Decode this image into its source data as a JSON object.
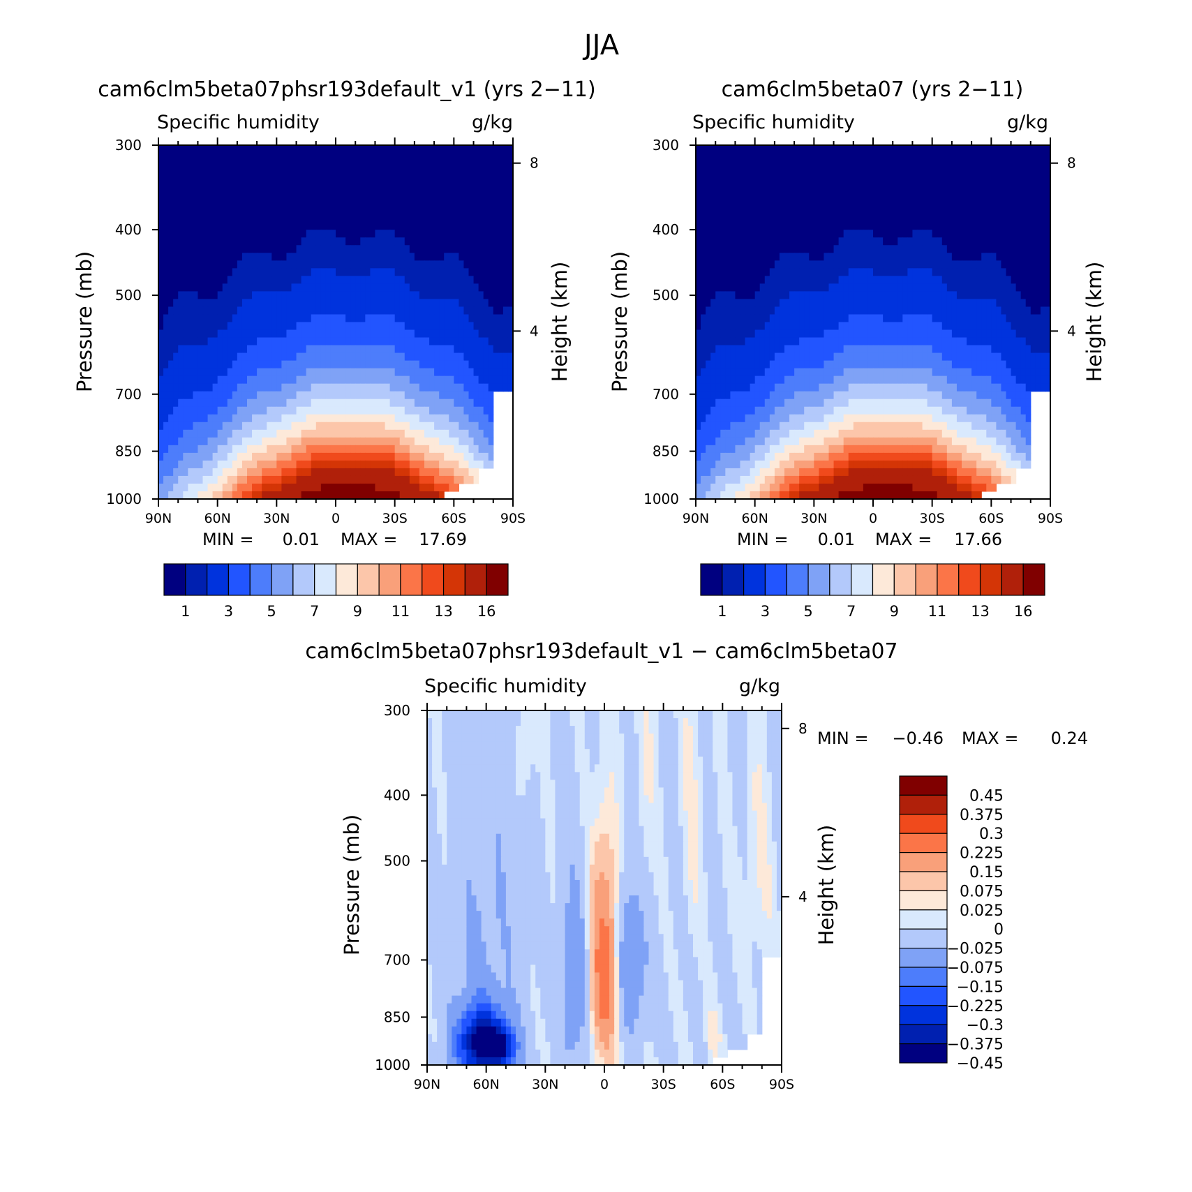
{
  "figure": {
    "title": "JJA"
  },
  "colors": {
    "abs_palette": [
      "#000080",
      "#0020b0",
      "#0033dd",
      "#2255ff",
      "#4d7dfb",
      "#7fa2f6",
      "#b3c9fb",
      "#d9e9fd",
      "#fde9d9",
      "#fcc6aa",
      "#f9a07a",
      "#fb7548",
      "#f04a1c",
      "#d43506",
      "#b0200a",
      "#800000"
    ],
    "diff_palette": [
      "#000080",
      "#0020b0",
      "#0033dd",
      "#2255ff",
      "#4d7dfb",
      "#7fa2f6",
      "#b3c9fb",
      "#d9e9fd",
      "#fde9d9",
      "#fcc6aa",
      "#f9a07a",
      "#fb7548",
      "#f04a1c",
      "#b0200a",
      "#800000"
    ]
  },
  "chart_data": [
    {
      "id": "panel1",
      "type": "heatmap",
      "title": "cam6clm5beta07phsr193default_v1 (yrs 2−11)",
      "subtitle_left": "Specific humidity",
      "subtitle_right": "g/kg",
      "ylabel": "Pressure (mb)",
      "ylabel_right": "Height (km)",
      "xticks": [
        "90N",
        "60N",
        "30N",
        "0",
        "30S",
        "60S",
        "90S"
      ],
      "x_range": [
        90,
        -90
      ],
      "yticks": [
        300,
        400,
        500,
        700,
        850,
        1000
      ],
      "ylim": [
        1000,
        300
      ],
      "height_ticks": [
        8,
        4
      ],
      "min_label": "MIN =",
      "min_value": "0.01",
      "max_label": "MAX =",
      "max_value": "17.69",
      "colorbar_labels": [
        "1",
        "3",
        "5",
        "7",
        "9",
        "11",
        "13",
        "16"
      ],
      "levels": [
        0.5,
        1,
        2,
        3,
        4,
        5,
        6,
        7,
        8,
        9,
        10,
        11,
        12,
        13,
        16
      ],
      "peak_lat": -8,
      "peak_value": 17.69
    },
    {
      "id": "panel2",
      "type": "heatmap",
      "title": "cam6clm5beta07 (yrs 2−11)",
      "subtitle_left": "Specific humidity",
      "subtitle_right": "g/kg",
      "ylabel": "Pressure (mb)",
      "ylabel_right": "Height (km)",
      "xticks": [
        "90N",
        "60N",
        "30N",
        "0",
        "30S",
        "60S",
        "90S"
      ],
      "x_range": [
        90,
        -90
      ],
      "yticks": [
        300,
        400,
        500,
        700,
        850,
        1000
      ],
      "ylim": [
        1000,
        300
      ],
      "height_ticks": [
        8,
        4
      ],
      "min_label": "MIN =",
      "min_value": "0.01",
      "max_label": "MAX =",
      "max_value": "17.66",
      "colorbar_labels": [
        "1",
        "3",
        "5",
        "7",
        "9",
        "11",
        "13",
        "16"
      ],
      "levels": [
        0.5,
        1,
        2,
        3,
        4,
        5,
        6,
        7,
        8,
        9,
        10,
        11,
        12,
        13,
        16
      ],
      "peak_lat": -8,
      "peak_value": 17.66
    },
    {
      "id": "panel3",
      "type": "heatmap",
      "title": "cam6clm5beta07phsr193default_v1 − cam6clm5beta07",
      "subtitle_left": "Specific humidity",
      "subtitle_right": "g/kg",
      "ylabel": "Pressure (mb)",
      "ylabel_right": "Height (km)",
      "xticks": [
        "90N",
        "60N",
        "30N",
        "0",
        "30S",
        "60S",
        "90S"
      ],
      "x_range": [
        90,
        -90
      ],
      "yticks": [
        300,
        400,
        500,
        700,
        850,
        1000
      ],
      "ylim": [
        1000,
        300
      ],
      "height_ticks": [
        8,
        4
      ],
      "min_label": "MIN =",
      "min_value": "−0.46",
      "max_label": "MAX =",
      "max_value": "0.24",
      "colorbar_labels": [
        "0.45",
        "0.375",
        "0.3",
        "0.225",
        "0.15",
        "0.075",
        "0.025",
        "0",
        "−0.025",
        "−0.075",
        "−0.15",
        "−0.225",
        "−0.3",
        "−0.375",
        "−0.45"
      ],
      "levels": [
        -0.45,
        -0.375,
        -0.3,
        -0.225,
        -0.15,
        -0.075,
        -0.025,
        0,
        0.025,
        0.075,
        0.15,
        0.225,
        0.3,
        0.375
      ],
      "features": [
        {
          "lat": 0,
          "p": 720,
          "value": 0.24
        },
        {
          "lat": 63,
          "p": 930,
          "value": -0.46
        },
        {
          "lat": 52,
          "p": 940,
          "value": -0.3
        },
        {
          "lat": 15,
          "p": 760,
          "value": -0.1
        },
        {
          "lat": -13,
          "p": 700,
          "value": -0.12
        }
      ]
    }
  ]
}
